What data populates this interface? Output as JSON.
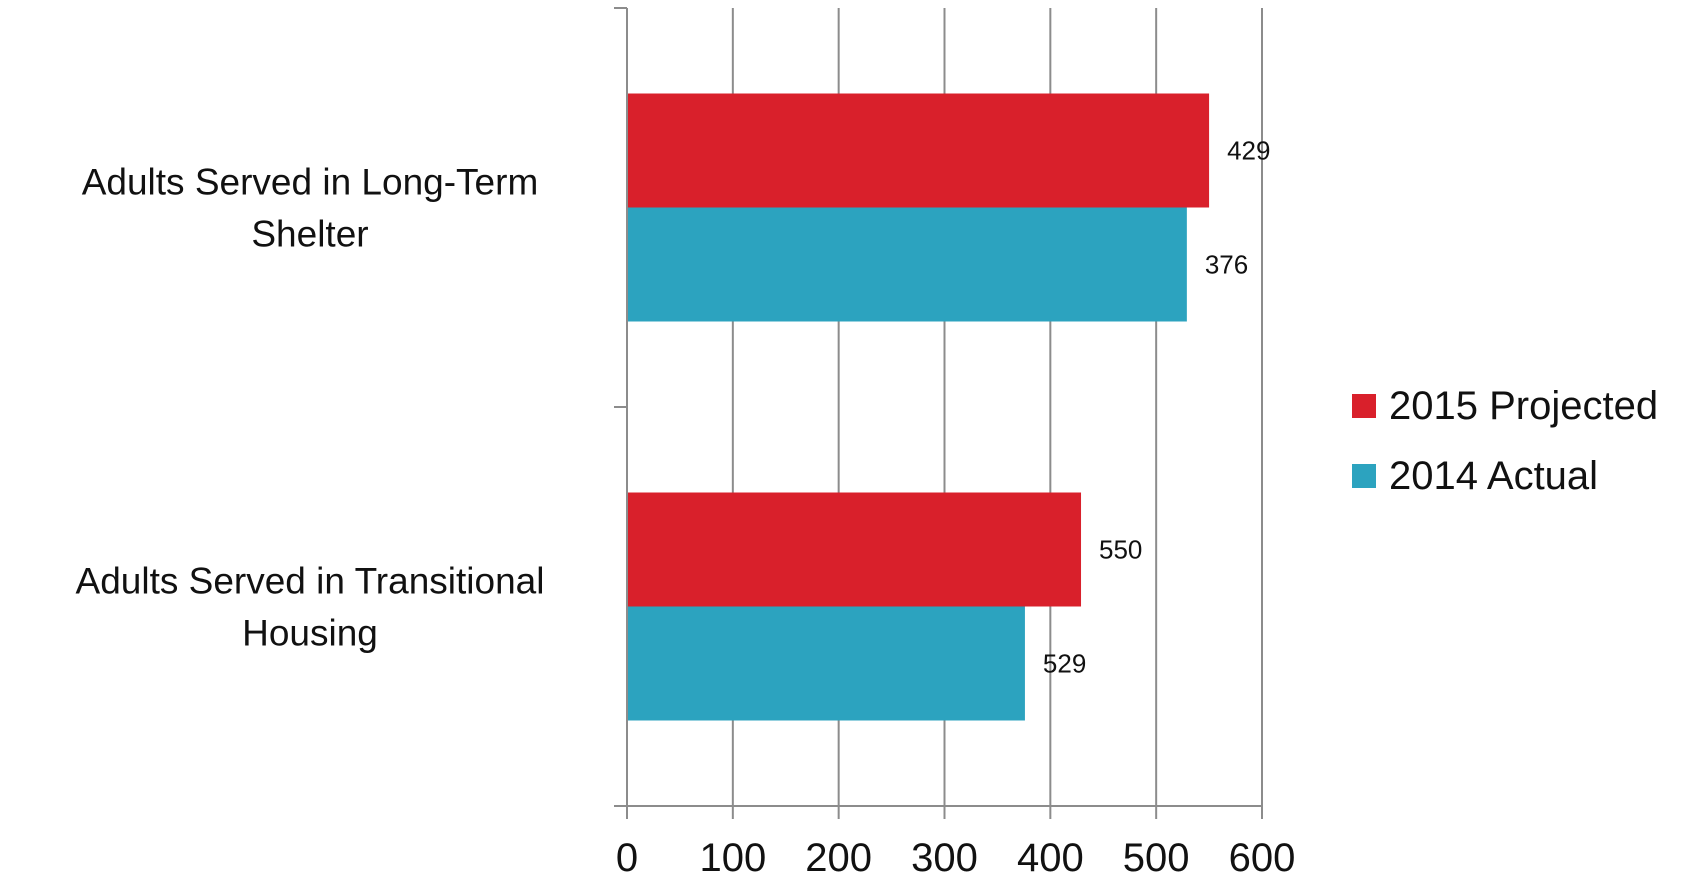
{
  "chart_data": {
    "type": "bar",
    "orientation": "horizontal",
    "categories": [
      [
        "Adults Served in Long-Term",
        "Shelter"
      ],
      [
        "Adults Served in Transitional",
        "Housing"
      ]
    ],
    "series": [
      {
        "name": "2015 Projected",
        "color": "#d9202b",
        "values": [
          550,
          429
        ],
        "data_labels": [
          "429",
          "550"
        ]
      },
      {
        "name": "2014 Actual",
        "color": "#2ca3bf",
        "values": [
          529,
          376
        ],
        "data_labels": [
          "376",
          "529"
        ]
      }
    ],
    "xlim": [
      0,
      600
    ],
    "xticks": [
      0,
      100,
      200,
      300,
      400,
      500,
      600
    ],
    "grid": "vertical",
    "legend": "right",
    "title": "",
    "xlabel": "",
    "ylabel": ""
  }
}
